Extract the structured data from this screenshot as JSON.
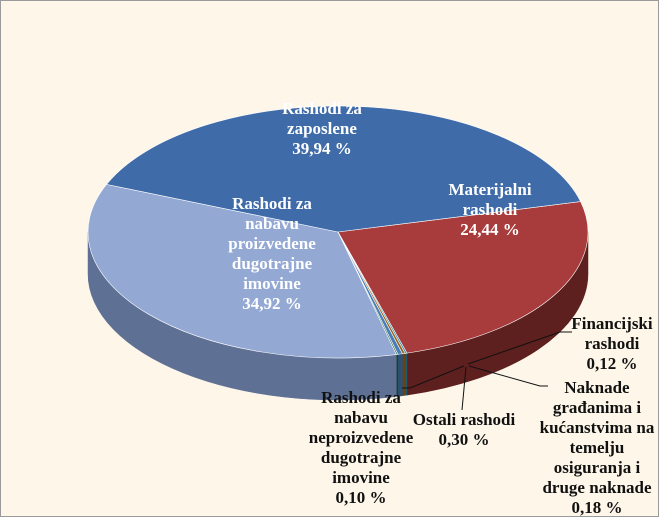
{
  "chart_data": {
    "type": "pie3d",
    "categories": [
      "Materijalni rashodi",
      "Financijski rashodi",
      "Naknade građanima i kućanstvima na temelju osiguranja i druge naknade",
      "Ostali rashodi",
      "Rashodi za nabavu neproizvedene dugotrajne imovine",
      "Rashodi za nabavu proizvedene dugotrajne imovine",
      "Rashodi za zaposlene"
    ],
    "values": [
      24.44,
      0.12,
      0.18,
      0.3,
      0.1,
      34.92,
      39.94
    ],
    "value_labels": [
      "24,44 %",
      "0,12 %",
      "0,18 %",
      "0,30 %",
      "0,10 %",
      "34,92 %",
      "39,94 %"
    ],
    "colors": [
      "#a83b3b",
      "#2c8fb0",
      "#9a6420",
      "#4a7eb8",
      "#2e6a44",
      "#93a9d3",
      "#3f6ca9"
    ],
    "side_colors": [
      "#5e1f1f",
      "#1b5a70",
      "#6a420f",
      "#2c5078",
      "#1c4029",
      "#5f7095",
      "#26446f"
    ]
  }
}
